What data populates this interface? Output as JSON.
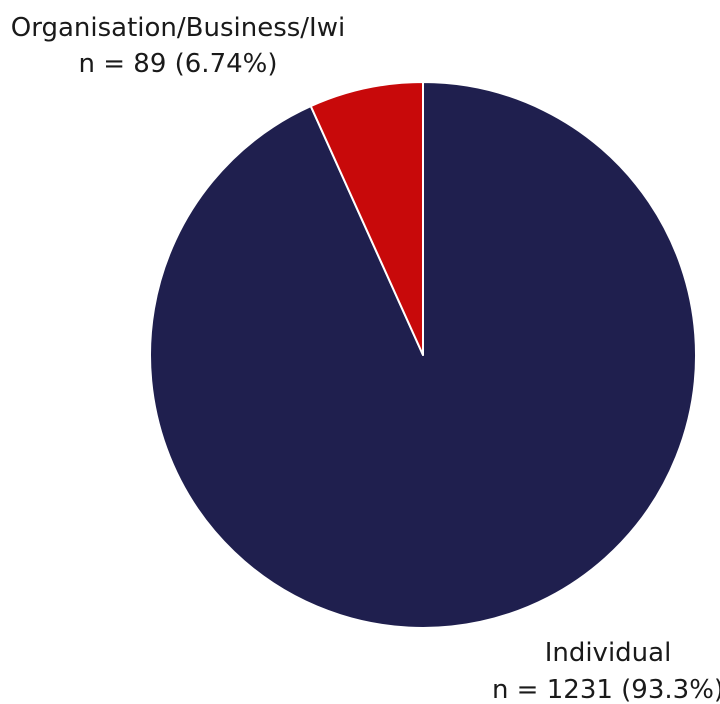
{
  "chart_data": {
    "type": "pie",
    "title": "",
    "slices": [
      {
        "label": "Individual",
        "count_text": "n = 1231 (93.3%)",
        "value": 1231,
        "percent": 93.3,
        "color": "#1f1f4e"
      },
      {
        "label": "Organisation/Business/Iwi",
        "count_text": "n = 89 (6.74%)",
        "value": 89,
        "percent": 6.74,
        "color": "#c8090a"
      }
    ],
    "start_angle": "12 o'clock",
    "direction": "clockwise",
    "slice_border_color": "#ffffff"
  }
}
